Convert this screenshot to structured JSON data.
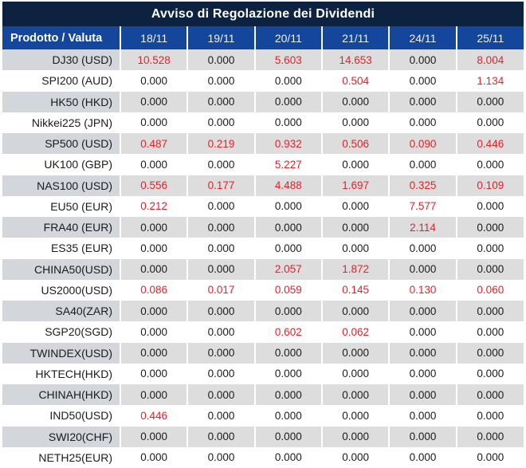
{
  "title": "Avviso di Regolazione dei Dividendi",
  "colors": {
    "title_bg": "#0c2240",
    "header_bg": "#14469b",
    "row_alt_bg": "#dddddd",
    "row_alt_label_bg": "#d3d6da",
    "value_red": "#e1242b",
    "value_black": "#1b1b1b",
    "divider": "#ffffff"
  },
  "table": {
    "product_header": "Prodotto / Valuta",
    "date_headers": [
      "18/11",
      "19/11",
      "20/11",
      "21/11",
      "24/11",
      "25/11"
    ],
    "zero_value": "0.000",
    "rows": [
      {
        "product": "DJ30 (USD)",
        "values": [
          "10.528",
          "0.000",
          "5.603",
          "14.653",
          "0.000",
          "8.004"
        ]
      },
      {
        "product": "SPI200 (AUD)",
        "values": [
          "0.000",
          "0.000",
          "0.000",
          "0.504",
          "0.000",
          "1.134"
        ]
      },
      {
        "product": "HK50 (HKD)",
        "values": [
          "0.000",
          "0.000",
          "0.000",
          "0.000",
          "0.000",
          "0.000"
        ]
      },
      {
        "product": "Nikkei225 (JPN)",
        "values": [
          "0.000",
          "0.000",
          "0.000",
          "0.000",
          "0.000",
          "0.000"
        ]
      },
      {
        "product": "SP500 (USD)",
        "values": [
          "0.487",
          "0.219",
          "0.932",
          "0.506",
          "0.090",
          "0.446"
        ]
      },
      {
        "product": "UK100 (GBP)",
        "values": [
          "0.000",
          "0.000",
          "5.227",
          "0.000",
          "0.000",
          "0.000"
        ]
      },
      {
        "product": "NAS100 (USD)",
        "values": [
          "0.556",
          "0.177",
          "4.488",
          "1.697",
          "0.325",
          "0.109"
        ]
      },
      {
        "product": "EU50 (EUR)",
        "values": [
          "0.212",
          "0.000",
          "0.000",
          "0.000",
          "7.577",
          "0.000"
        ]
      },
      {
        "product": "FRA40 (EUR)",
        "values": [
          "0.000",
          "0.000",
          "0.000",
          "0.000",
          "2.114",
          "0.000"
        ]
      },
      {
        "product": "ES35 (EUR)",
        "values": [
          "0.000",
          "0.000",
          "0.000",
          "0.000",
          "0.000",
          "0.000"
        ]
      },
      {
        "product": "CHINA50(USD)",
        "values": [
          "0.000",
          "0.000",
          "2.057",
          "1.872",
          "0.000",
          "0.000"
        ]
      },
      {
        "product": "US2000(USD)",
        "values": [
          "0.086",
          "0.017",
          "0.059",
          "0.145",
          "0.130",
          "0.060"
        ]
      },
      {
        "product": "SA40(ZAR)",
        "values": [
          "0.000",
          "0.000",
          "0.000",
          "0.000",
          "0.000",
          "0.000"
        ]
      },
      {
        "product": "SGP20(SGD)",
        "values": [
          "0.000",
          "0.000",
          "0.602",
          "0.062",
          "0.000",
          "0.000"
        ]
      },
      {
        "product": "TWINDEX(USD)",
        "values": [
          "0.000",
          "0.000",
          "0.000",
          "0.000",
          "0.000",
          "0.000"
        ]
      },
      {
        "product": "HKTECH(HKD)",
        "values": [
          "0.000",
          "0.000",
          "0.000",
          "0.000",
          "0.000",
          "0.000"
        ]
      },
      {
        "product": "CHINAH(HKD)",
        "values": [
          "0.000",
          "0.000",
          "0.000",
          "0.000",
          "0.000",
          "0.000"
        ]
      },
      {
        "product": "IND50(USD)",
        "values": [
          "0.446",
          "0.000",
          "0.000",
          "0.000",
          "0.000",
          "0.000"
        ]
      },
      {
        "product": "SWI20(CHF)",
        "values": [
          "0.000",
          "0.000",
          "0.000",
          "0.000",
          "0.000",
          "0.000"
        ]
      },
      {
        "product": "NETH25(EUR)",
        "values": [
          "0.000",
          "0.000",
          "0.000",
          "0.000",
          "0.000",
          "0.000"
        ]
      }
    ]
  }
}
